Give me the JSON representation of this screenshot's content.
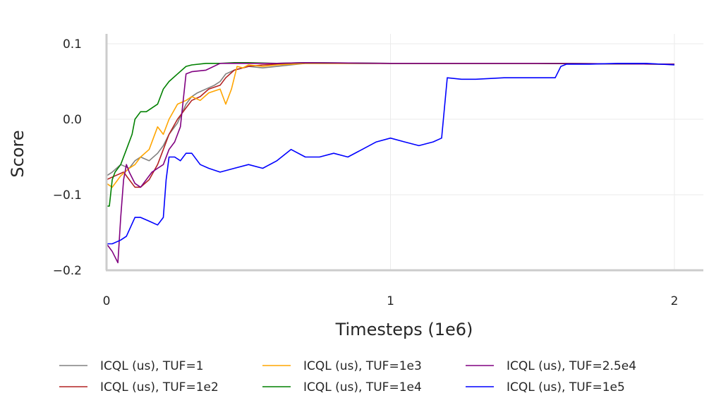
{
  "chart_data": {
    "type": "line",
    "title": "",
    "xlabel": "Timesteps (1e6)",
    "ylabel": "Score",
    "xlim": [
      0,
      2.1
    ],
    "ylim": [
      -0.2,
      0.11
    ],
    "x_ticks": [
      0,
      1,
      2
    ],
    "x_tick_labels": [
      "0",
      "1",
      "2"
    ],
    "y_ticks": [
      0.1,
      0.0,
      -0.1,
      -0.2
    ],
    "y_tick_labels": [
      "0.1",
      "0.0",
      "−0.1",
      "−0.2"
    ],
    "grid": true,
    "legend_position": "bottom",
    "series": [
      {
        "name": "ICQL (us), TUF=1",
        "color": "#808080",
        "x": [
          0,
          0.02,
          0.05,
          0.08,
          0.1,
          0.12,
          0.15,
          0.18,
          0.2,
          0.22,
          0.25,
          0.28,
          0.3,
          0.32,
          0.35,
          0.38,
          0.4,
          0.42,
          0.45,
          0.48,
          0.5,
          0.55,
          0.6,
          0.65,
          0.7,
          1.0,
          1.5,
          2.0
        ],
        "y": [
          -0.075,
          -0.07,
          -0.06,
          -0.065,
          -0.055,
          -0.05,
          -0.055,
          -0.045,
          -0.035,
          -0.02,
          -0.005,
          0.02,
          0.03,
          0.035,
          0.04,
          0.045,
          0.05,
          0.06,
          0.065,
          0.068,
          0.07,
          0.068,
          0.07,
          0.072,
          0.074,
          0.074,
          0.074,
          0.073
        ]
      },
      {
        "name": "ICQL (us), TUF=1e2",
        "color": "#b22222",
        "x": [
          0,
          0.03,
          0.06,
          0.08,
          0.1,
          0.12,
          0.15,
          0.18,
          0.2,
          0.22,
          0.25,
          0.28,
          0.3,
          0.33,
          0.36,
          0.4,
          0.42,
          0.45,
          0.5,
          0.55,
          0.6,
          0.7,
          1.0,
          1.5,
          2.0
        ],
        "y": [
          -0.08,
          -0.075,
          -0.07,
          -0.08,
          -0.09,
          -0.09,
          -0.08,
          -0.06,
          -0.04,
          -0.02,
          0.0,
          0.015,
          0.025,
          0.03,
          0.04,
          0.045,
          0.055,
          0.065,
          0.07,
          0.072,
          0.073,
          0.074,
          0.074,
          0.074,
          0.073
        ]
      },
      {
        "name": "ICQL (us), TUF=1e3",
        "color": "#ffa500",
        "x": [
          0,
          0.02,
          0.05,
          0.08,
          0.1,
          0.12,
          0.15,
          0.18,
          0.2,
          0.22,
          0.25,
          0.28,
          0.3,
          0.33,
          0.36,
          0.4,
          0.42,
          0.44,
          0.46,
          0.48,
          0.5,
          0.55,
          0.6,
          0.65,
          0.7,
          1.0,
          1.5,
          2.0
        ],
        "y": [
          -0.085,
          -0.09,
          -0.075,
          -0.065,
          -0.06,
          -0.05,
          -0.04,
          -0.01,
          -0.02,
          0.0,
          0.02,
          0.025,
          0.03,
          0.025,
          0.035,
          0.04,
          0.02,
          0.04,
          0.07,
          0.068,
          0.072,
          0.07,
          0.072,
          0.073,
          0.074,
          0.074,
          0.074,
          0.073
        ]
      },
      {
        "name": "ICQL (us), TUF=1e4",
        "color": "#008000",
        "x": [
          0,
          0.01,
          0.02,
          0.03,
          0.05,
          0.07,
          0.09,
          0.1,
          0.12,
          0.14,
          0.16,
          0.18,
          0.2,
          0.22,
          0.25,
          0.28,
          0.3,
          0.35,
          0.4,
          0.45,
          0.5,
          0.6,
          0.7,
          1.0,
          1.5,
          2.0
        ],
        "y": [
          -0.115,
          -0.115,
          -0.08,
          -0.07,
          -0.06,
          -0.04,
          -0.02,
          0.0,
          0.01,
          0.01,
          0.015,
          0.02,
          0.04,
          0.05,
          0.06,
          0.07,
          0.072,
          0.074,
          0.074,
          0.075,
          0.075,
          0.074,
          0.075,
          0.074,
          0.074,
          0.073
        ]
      },
      {
        "name": "ICQL (us), TUF=2.5e4",
        "color": "#800080",
        "x": [
          0,
          0.02,
          0.04,
          0.05,
          0.06,
          0.07,
          0.08,
          0.1,
          0.12,
          0.14,
          0.16,
          0.18,
          0.2,
          0.22,
          0.24,
          0.26,
          0.28,
          0.3,
          0.35,
          0.4,
          0.5,
          0.6,
          0.7,
          1.0,
          1.5,
          2.0
        ],
        "y": [
          -0.165,
          -0.175,
          -0.19,
          -0.13,
          -0.08,
          -0.06,
          -0.07,
          -0.085,
          -0.09,
          -0.08,
          -0.07,
          -0.065,
          -0.06,
          -0.04,
          -0.03,
          -0.01,
          0.06,
          0.063,
          0.065,
          0.074,
          0.074,
          0.074,
          0.075,
          0.074,
          0.074,
          0.073
        ]
      },
      {
        "name": "ICQL (us), TUF=1e5",
        "color": "#0000ff",
        "x": [
          0,
          0.02,
          0.05,
          0.07,
          0.1,
          0.12,
          0.15,
          0.18,
          0.2,
          0.21,
          0.22,
          0.24,
          0.26,
          0.28,
          0.3,
          0.33,
          0.36,
          0.4,
          0.45,
          0.5,
          0.55,
          0.6,
          0.65,
          0.7,
          0.75,
          0.8,
          0.85,
          0.9,
          0.95,
          1.0,
          1.05,
          1.1,
          1.15,
          1.18,
          1.2,
          1.25,
          1.3,
          1.4,
          1.5,
          1.58,
          1.6,
          1.62,
          1.7,
          1.8,
          1.9,
          2.0
        ],
        "y": [
          -0.165,
          -0.165,
          -0.16,
          -0.155,
          -0.13,
          -0.13,
          -0.135,
          -0.14,
          -0.13,
          -0.08,
          -0.05,
          -0.05,
          -0.055,
          -0.045,
          -0.045,
          -0.06,
          -0.065,
          -0.07,
          -0.065,
          -0.06,
          -0.065,
          -0.055,
          -0.04,
          -0.05,
          -0.05,
          -0.045,
          -0.05,
          -0.04,
          -0.03,
          -0.025,
          -0.03,
          -0.035,
          -0.03,
          -0.025,
          0.055,
          0.053,
          0.053,
          0.055,
          0.055,
          0.055,
          0.07,
          0.073,
          0.073,
          0.074,
          0.074,
          0.072
        ]
      }
    ]
  }
}
